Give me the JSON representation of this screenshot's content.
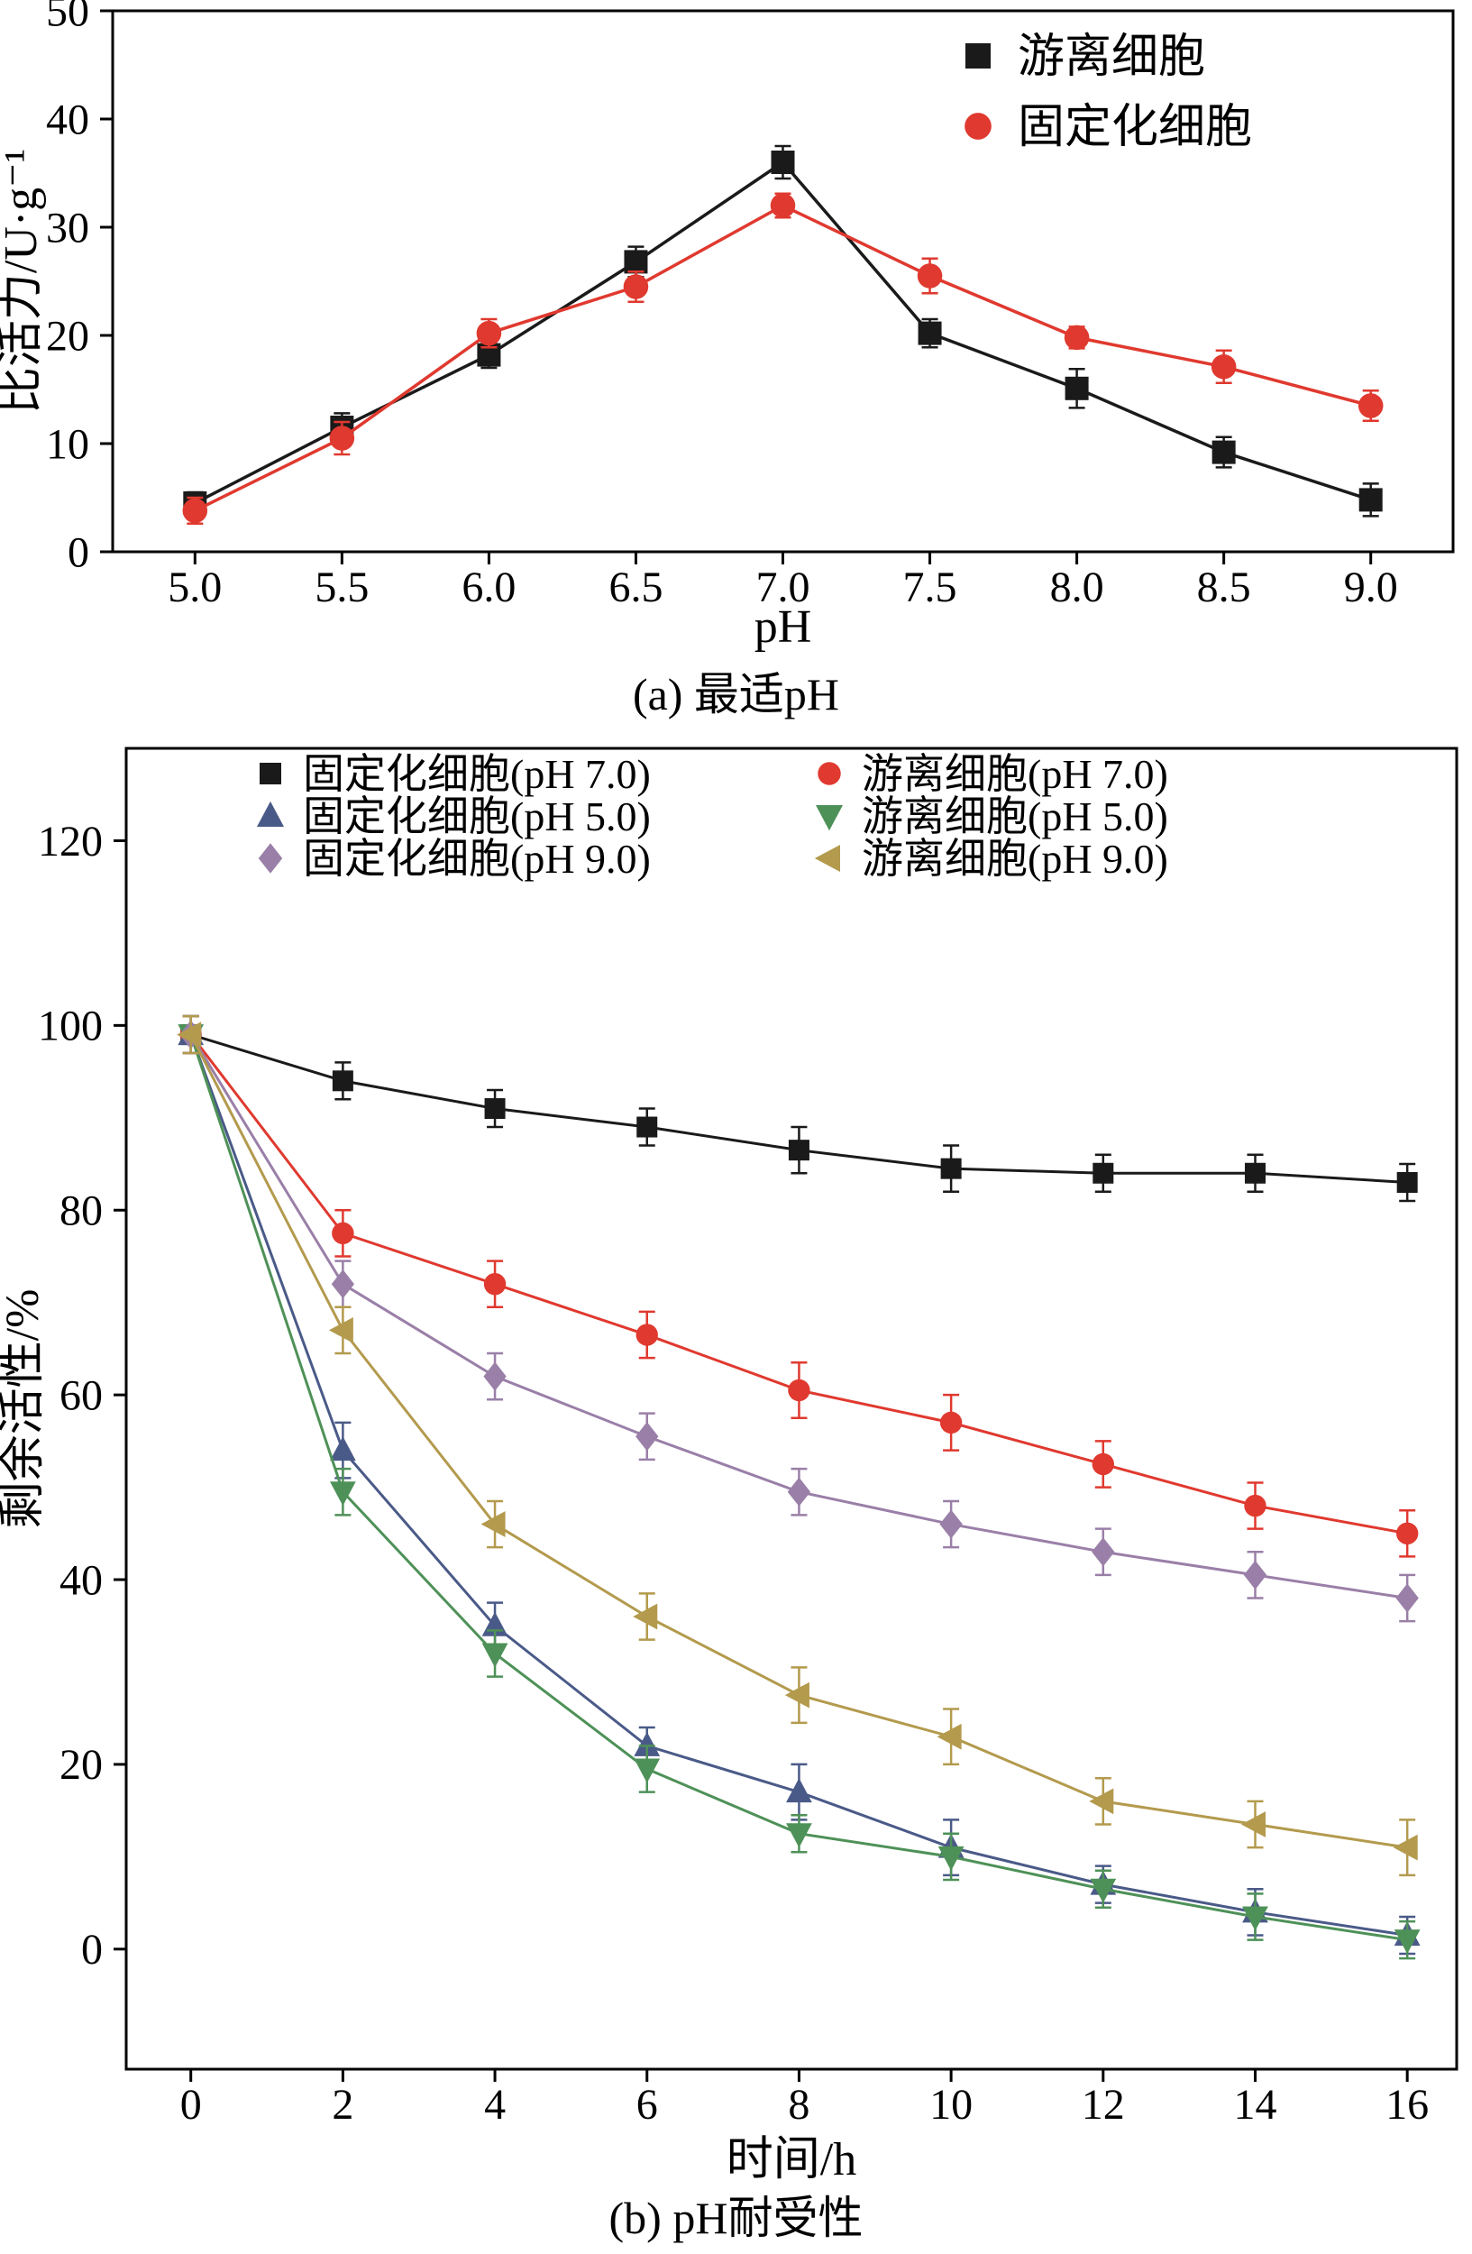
{
  "chart_data": [
    {
      "type": "line",
      "caption": "(a) 最适pH",
      "xlabel": "pH",
      "ylabel": "比活力/U·g⁻¹",
      "xlim": [
        4.72,
        9.28
      ],
      "ylim": [
        0,
        50
      ],
      "x": [
        5.0,
        5.5,
        6.0,
        6.5,
        7.0,
        7.5,
        8.0,
        8.5,
        9.0
      ],
      "xticks": [
        5.0,
        5.5,
        6.0,
        6.5,
        7.0,
        7.5,
        8.0,
        8.5,
        9.0
      ],
      "xtick_labels": [
        "5.0",
        "5.5",
        "6.0",
        "6.5",
        "7.0",
        "7.5",
        "8.0",
        "8.5",
        "9.0"
      ],
      "yticks": [
        0,
        10,
        20,
        30,
        40,
        50
      ],
      "ytick_labels": [
        "0",
        "10",
        "20",
        "30",
        "40",
        "50"
      ],
      "grid": false,
      "legend_position": "top-right-inside",
      "series": [
        {
          "key": "free-cells",
          "name": "游离细胞",
          "marker": "square",
          "color": "#1a1a1a",
          "values": [
            4.5,
            11.5,
            18.2,
            26.8,
            36.0,
            20.2,
            15.1,
            9.2,
            4.8
          ],
          "errors": [
            1.0,
            1.3,
            1.2,
            1.4,
            1.5,
            1.3,
            1.8,
            1.4,
            1.5
          ]
        },
        {
          "key": "immobilized-cells",
          "name": "固定化细胞",
          "marker": "circle",
          "color": "#e0392f",
          "values": [
            3.8,
            10.5,
            20.2,
            24.5,
            32.0,
            25.5,
            19.8,
            17.1,
            13.5
          ],
          "errors": [
            1.2,
            1.5,
            1.3,
            1.4,
            1.1,
            1.6,
            1.0,
            1.5,
            1.4
          ]
        }
      ]
    },
    {
      "type": "line",
      "caption": "(b) pH耐受性",
      "xlabel": "时间/h",
      "ylabel": "剩余活性/%",
      "xlim": [
        -0.85,
        16.65
      ],
      "ylim": [
        -13,
        130
      ],
      "x": [
        0,
        2,
        4,
        6,
        8,
        10,
        12,
        14,
        16
      ],
      "xticks": [
        0,
        2,
        4,
        6,
        8,
        10,
        12,
        14,
        16
      ],
      "xtick_labels": [
        "0",
        "2",
        "4",
        "6",
        "8",
        "10",
        "12",
        "14",
        "16"
      ],
      "yticks": [
        0,
        20,
        40,
        60,
        80,
        100,
        120
      ],
      "ytick_labels": [
        "0",
        "20",
        "40",
        "60",
        "80",
        "100",
        "120"
      ],
      "grid": false,
      "legend_position": "top-inside-two-columns",
      "series": [
        {
          "key": "immobilized-ph7",
          "name": "固定化细胞(pH 7.0)",
          "marker": "square",
          "color": "#1a1a1a",
          "values": [
            99,
            94,
            91,
            89,
            86.5,
            84.5,
            84,
            84,
            83
          ],
          "errors": [
            2,
            2,
            2,
            2,
            2.5,
            2.5,
            2,
            2,
            2
          ]
        },
        {
          "key": "free-ph7",
          "name": "游离细胞(pH 7.0)",
          "marker": "circle",
          "color": "#e0392f",
          "values": [
            99,
            77.5,
            72,
            66.5,
            60.5,
            57,
            52.5,
            48,
            45
          ],
          "errors": [
            2,
            2.5,
            2.5,
            2.5,
            3,
            3,
            2.5,
            2.5,
            2.5
          ]
        },
        {
          "key": "immobilized-ph5",
          "name": "固定化细胞(pH 5.0)",
          "marker": "triangle-up",
          "color": "#4a5a88",
          "values": [
            99,
            54,
            35,
            22,
            17,
            11,
            7,
            4,
            1.5
          ],
          "errors": [
            2,
            3,
            2.5,
            2,
            3,
            3,
            2,
            2.5,
            2
          ]
        },
        {
          "key": "free-ph5",
          "name": "游离细胞(pH 5.0)",
          "marker": "triangle-down",
          "color": "#4e9158",
          "values": [
            99,
            49.5,
            32,
            19.5,
            12.5,
            10,
            6.5,
            3.5,
            1
          ],
          "errors": [
            2,
            2.5,
            2.5,
            2.5,
            2,
            2.5,
            2,
            2.5,
            2
          ]
        },
        {
          "key": "immobilized-ph9",
          "name": "固定化细胞(pH 9.0)",
          "marker": "diamond",
          "color": "#9a7fa8",
          "values": [
            99,
            72,
            62,
            55.5,
            49.5,
            46,
            43,
            40.5,
            38
          ],
          "errors": [
            2,
            2.5,
            2.5,
            2.5,
            2.5,
            2.5,
            2.5,
            2.5,
            2.5
          ]
        },
        {
          "key": "free-ph9",
          "name": "游离细胞(pH 9.0)",
          "marker": "triangle-left",
          "color": "#b39a4d",
          "values": [
            99,
            67,
            46,
            36,
            27.5,
            23,
            16,
            13.5,
            11
          ],
          "errors": [
            2,
            2.5,
            2.5,
            2.5,
            3,
            3,
            2.5,
            2.5,
            3
          ]
        }
      ]
    }
  ]
}
